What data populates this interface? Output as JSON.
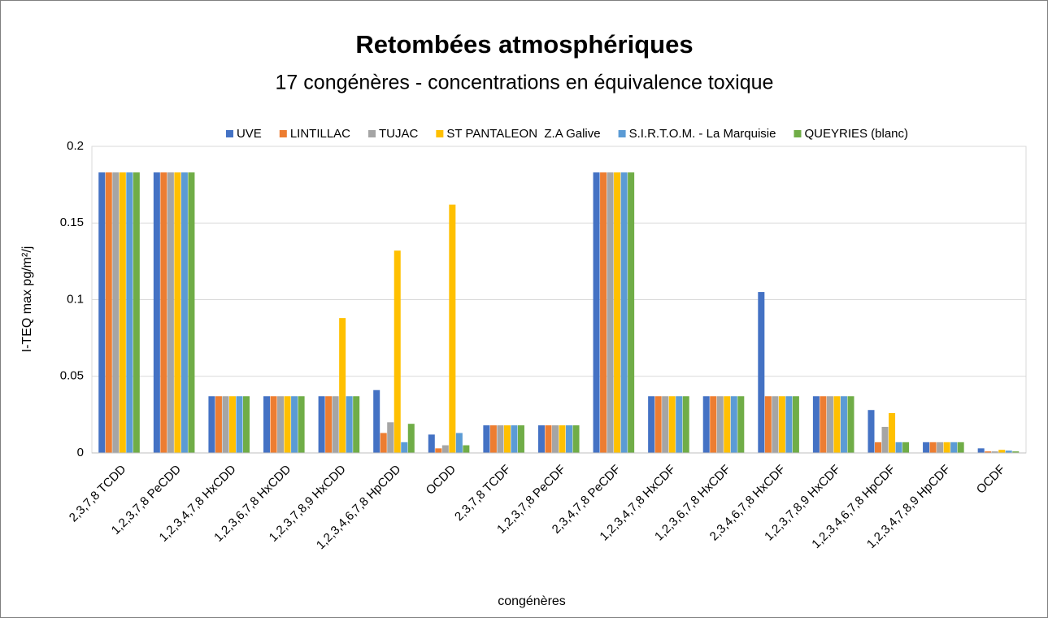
{
  "chart_data": {
    "type": "bar",
    "title": "Retombées atmosphériques",
    "subtitle": "17 congénères - concentrations en équivalence toxique",
    "y_label": "I-TEQ max pg/m²/j",
    "x_label": "congénères",
    "categories": [
      "2,3,7,8 TCDD",
      "1,2,3,7,8 PeCDD",
      "1,2,3,4,7,8 HxCDD",
      "1,2,3,6,7,8 HxCDD",
      "1,2,3,7,8,9 HxCDD",
      "1,2,3,4,6,7,8 HpCDD",
      "OCDD",
      "2,3,7,8 TCDF",
      "1,2,3,7,8 PeCDF",
      "2,3,4,7,8 PeCDF",
      "1,2,3,4,7,8 HxCDF",
      "1,2,3,6,7,8 HxCDF",
      "2,3,4,6,7,8 HxCDF",
      "1,2,3,7,8,9 HxCDF",
      "1,2,3,4,6,7,8 HpCDF",
      "1,2,3,4,7,8,9 HpCDF",
      "OCDF"
    ],
    "series": [
      {
        "name": "UVE",
        "color": "#4472c4",
        "values": [
          0.183,
          0.183,
          0.037,
          0.037,
          0.037,
          0.041,
          0.012,
          0.018,
          0.018,
          0.183,
          0.037,
          0.037,
          0.105,
          0.037,
          0.028,
          0.007,
          0.003
        ]
      },
      {
        "name": "LINTILLAC",
        "color": "#ed7d31",
        "values": [
          0.183,
          0.183,
          0.037,
          0.037,
          0.037,
          0.013,
          0.003,
          0.018,
          0.018,
          0.183,
          0.037,
          0.037,
          0.037,
          0.037,
          0.007,
          0.007,
          0.001
        ]
      },
      {
        "name": "TUJAC",
        "color": "#a5a5a5",
        "values": [
          0.183,
          0.183,
          0.037,
          0.037,
          0.037,
          0.02,
          0.005,
          0.018,
          0.018,
          0.183,
          0.037,
          0.037,
          0.037,
          0.037,
          0.017,
          0.007,
          0.001
        ]
      },
      {
        "name": "ST PANTALEON  Z.A Galive",
        "color": "#ffc000",
        "values": [
          0.183,
          0.183,
          0.037,
          0.037,
          0.088,
          0.132,
          0.162,
          0.018,
          0.018,
          0.183,
          0.037,
          0.037,
          0.037,
          0.037,
          0.026,
          0.007,
          0.002
        ]
      },
      {
        "name": "S.I.R.T.O.M. - La Marquisie",
        "color": "#5b9bd5",
        "values": [
          0.183,
          0.183,
          0.037,
          0.037,
          0.037,
          0.007,
          0.013,
          0.018,
          0.018,
          0.183,
          0.037,
          0.037,
          0.037,
          0.037,
          0.007,
          0.007,
          0.0015
        ]
      },
      {
        "name": "QUEYRIES (blanc)",
        "color": "#70ad47",
        "values": [
          0.183,
          0.183,
          0.037,
          0.037,
          0.037,
          0.019,
          0.005,
          0.018,
          0.018,
          0.183,
          0.037,
          0.037,
          0.037,
          0.037,
          0.007,
          0.007,
          0.001
        ]
      }
    ],
    "ylim": [
      0,
      0.2
    ],
    "yticks": [
      0,
      0.05,
      0.1,
      0.15,
      0.2
    ],
    "grid": true,
    "legend": "top"
  }
}
